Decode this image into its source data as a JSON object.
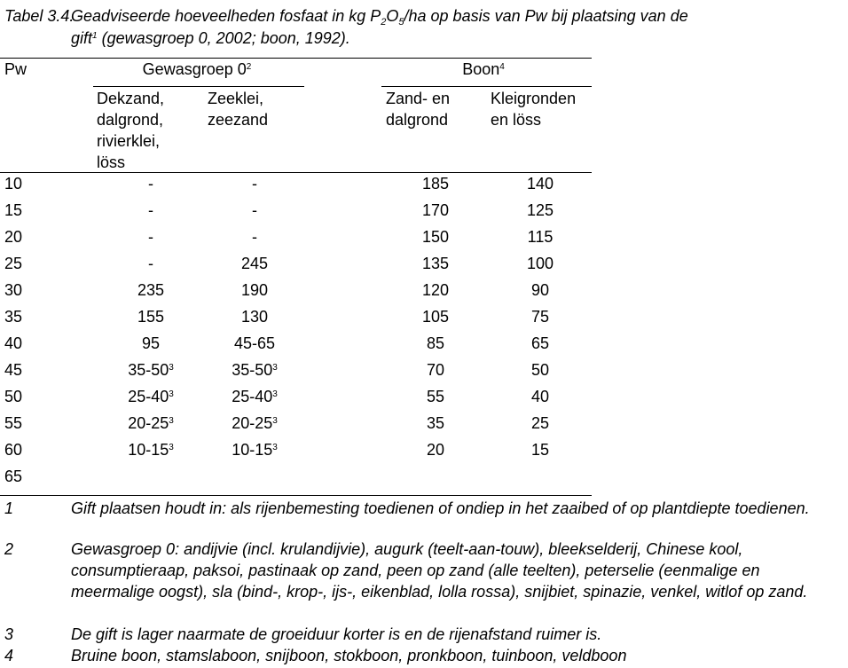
{
  "caption": {
    "label": "Tabel 3.4.",
    "text_part1": "Geadviseerde hoeveelheden fosfaat in kg P",
    "sub1": "2",
    "text_part2": "O",
    "sub2": "5",
    "text_part3": "/ha op basis van Pw bij plaatsing van de",
    "line2_a": "gift",
    "line2_sup": "1",
    "line2_b": " (gewasgroep 0, 2002; boon, 1992)."
  },
  "header": {
    "pw": "Pw",
    "group1": "Gewasgroep 0",
    "group1_note": "2",
    "group2": "Boon",
    "group2_note": "4",
    "col1": "Dekzand, dalgrond, rivierklei, löss",
    "col2": "Zeeklei, zeezand",
    "col3": "Zand- en dalgrond",
    "col4": "Kleigronden en löss"
  },
  "rows": [
    {
      "pw": "10",
      "c1": {
        "v": "-"
      },
      "c2": {
        "v": "-"
      },
      "c3": "185",
      "c4": "140"
    },
    {
      "pw": "15",
      "c1": {
        "v": "-"
      },
      "c2": {
        "v": "-"
      },
      "c3": "170",
      "c4": "125"
    },
    {
      "pw": "20",
      "c1": {
        "v": "-"
      },
      "c2": {
        "v": "-"
      },
      "c3": "150",
      "c4": "115"
    },
    {
      "pw": "25",
      "c1": {
        "v": "-"
      },
      "c2": {
        "v": "245"
      },
      "c3": "135",
      "c4": "100"
    },
    {
      "pw": "30",
      "c1": {
        "v": "235"
      },
      "c2": {
        "v": "190"
      },
      "c3": "120",
      "c4": "90"
    },
    {
      "pw": "35",
      "c1": {
        "v": "155"
      },
      "c2": {
        "v": "130"
      },
      "c3": "105",
      "c4": "75"
    },
    {
      "pw": "40",
      "c1": {
        "v": "95"
      },
      "c2": {
        "v": "45-65"
      },
      "c3": "85",
      "c4": "65"
    },
    {
      "pw": "45",
      "c1": {
        "v": "35-50",
        "n": "3"
      },
      "c2": {
        "v": "35-50",
        "n": "3"
      },
      "c3": "70",
      "c4": "50"
    },
    {
      "pw": "50",
      "c1": {
        "v": "25-40",
        "n": "3"
      },
      "c2": {
        "v": "25-40",
        "n": "3"
      },
      "c3": "55",
      "c4": "40"
    },
    {
      "pw": "55",
      "c1": {
        "v": "20-25",
        "n": "3"
      },
      "c2": {
        "v": "20-25",
        "n": "3"
      },
      "c3": "35",
      "c4": "25"
    },
    {
      "pw": "60",
      "c1": {
        "v": "10-15",
        "n": "3"
      },
      "c2": {
        "v": "10-15",
        "n": "3"
      },
      "c3": "20",
      "c4": "15"
    },
    {
      "pw": "65",
      "c1": {
        "v": ""
      },
      "c2": {
        "v": ""
      },
      "c3": "",
      "c4": ""
    }
  ],
  "footnotes": [
    {
      "num": "1",
      "text": "Gift plaatsen houdt in: als rijenbemesting toedienen of ondiep in het zaaibed of op plantdiepte toedienen."
    },
    {
      "num": "2",
      "text": "Gewasgroep 0: andijvie (incl. krulandijvie), augurk (teelt-aan-touw), bleekselderij, Chinese kool, consumptieraap, paksoi, pastinaak op zand, peen op zand (alle teelten), peterselie (eenmalige en meermalige oogst), sla (bind-, krop-, ijs-, eikenblad, lolla rossa), snijbiet, spinazie, venkel, witlof op zand."
    },
    {
      "num": "3",
      "text": "De gift is lager naarmate de groeiduur korter is en de rijenafstand ruimer is."
    },
    {
      "num": "4",
      "text": "Bruine boon, stamslaboon, snijboon, stokboon, pronkboon, tuinboon, veldboon"
    }
  ]
}
